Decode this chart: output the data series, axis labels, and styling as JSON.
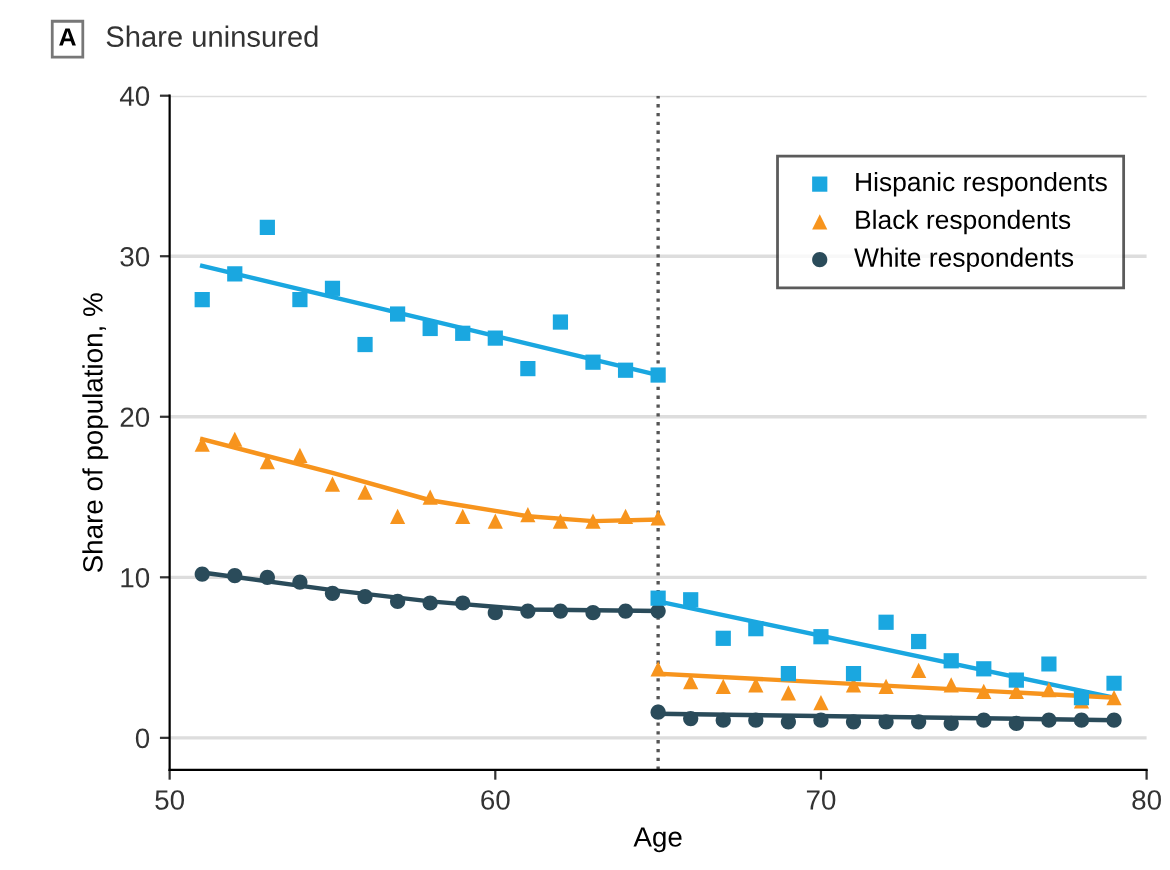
{
  "chart_data": {
    "type": "scatter",
    "title": "Share uninsured",
    "annotations": [
      "A"
    ],
    "xlabel": "Age",
    "ylabel": "Share of population, %",
    "xlim": [
      50,
      80
    ],
    "xticks": [
      50,
      60,
      70,
      80
    ],
    "ylim": [
      -2,
      40
    ],
    "yticks": [
      0,
      10,
      20,
      30,
      40
    ],
    "grid": "y",
    "legend": "top right",
    "ref_lines": [
      {
        "axis": "x",
        "value": 65,
        "color": "#555555",
        "line_style": "dotted"
      }
    ],
    "series": [
      {
        "name": "Hispanic respondents",
        "color": "#1aa7e0",
        "marker": "square",
        "x": [
          51,
          52,
          53,
          54,
          55,
          56,
          57,
          58,
          59,
          60,
          61,
          62,
          63,
          64,
          65,
          65,
          66,
          67,
          68,
          69,
          70,
          71,
          72,
          73,
          74,
          75,
          76,
          77,
          78,
          79
        ],
        "values": [
          27.3,
          28.9,
          31.8,
          27.3,
          28.0,
          24.5,
          26.4,
          25.5,
          25.2,
          24.9,
          23.0,
          25.9,
          23.4,
          22.9,
          22.6,
          8.7,
          8.6,
          6.2,
          6.8,
          4.0,
          6.3,
          4.0,
          7.2,
          6.0,
          4.8,
          4.3,
          3.6,
          4.6,
          2.5,
          3.4
        ]
      },
      {
        "name": "Black respondents",
        "color": "#f7941d",
        "marker": "triangle",
        "x": [
          51,
          52,
          53,
          54,
          55,
          56,
          57,
          58,
          59,
          60,
          61,
          62,
          63,
          64,
          65,
          65,
          66,
          67,
          68,
          69,
          70,
          71,
          72,
          73,
          74,
          75,
          76,
          77,
          78,
          79
        ],
        "values": [
          18.3,
          18.6,
          17.2,
          17.6,
          15.8,
          15.3,
          13.8,
          15.0,
          13.8,
          13.5,
          13.9,
          13.5,
          13.5,
          13.8,
          13.7,
          4.3,
          3.5,
          3.2,
          3.3,
          2.8,
          2.2,
          3.3,
          3.2,
          4.2,
          3.3,
          2.9,
          2.9,
          3.0,
          2.3,
          2.5
        ]
      },
      {
        "name": "White respondents",
        "color": "#2a4b5a",
        "marker": "circle",
        "x": [
          51,
          52,
          53,
          54,
          55,
          56,
          57,
          58,
          59,
          60,
          61,
          62,
          63,
          64,
          65,
          65,
          66,
          67,
          68,
          69,
          70,
          71,
          72,
          73,
          74,
          75,
          76,
          77,
          78,
          79
        ],
        "values": [
          10.2,
          10.1,
          10.0,
          9.7,
          9.0,
          8.8,
          8.5,
          8.4,
          8.4,
          7.8,
          7.9,
          7.9,
          7.8,
          7.9,
          7.9,
          1.6,
          1.2,
          1.1,
          1.1,
          1.0,
          1.1,
          1.0,
          1.0,
          1.0,
          0.9,
          1.1,
          0.9,
          1.1,
          1.1,
          1.1
        ]
      },
      {
        "type": "line",
        "color": "#1aa7e0",
        "x": [
          51,
          65
        ],
        "values": [
          29.4,
          22.6
        ]
      },
      {
        "type": "line",
        "color": "#1aa7e0",
        "x": [
          65,
          79
        ],
        "values": [
          8.5,
          2.5
        ]
      },
      {
        "type": "line",
        "color": "#f7941d",
        "x": [
          51,
          55,
          58,
          61,
          63,
          65
        ],
        "values": [
          18.6,
          16.5,
          14.8,
          13.8,
          13.5,
          13.6
        ]
      },
      {
        "type": "line",
        "color": "#f7941d",
        "x": [
          65,
          79
        ],
        "values": [
          4.0,
          2.5
        ]
      },
      {
        "type": "line",
        "color": "#2a4b5a",
        "x": [
          51,
          55,
          58,
          61,
          65
        ],
        "values": [
          10.3,
          9.2,
          8.5,
          8.0,
          7.9
        ]
      },
      {
        "type": "line",
        "color": "#2a4b5a",
        "x": [
          65,
          79
        ],
        "values": [
          1.5,
          1.1
        ]
      }
    ]
  }
}
